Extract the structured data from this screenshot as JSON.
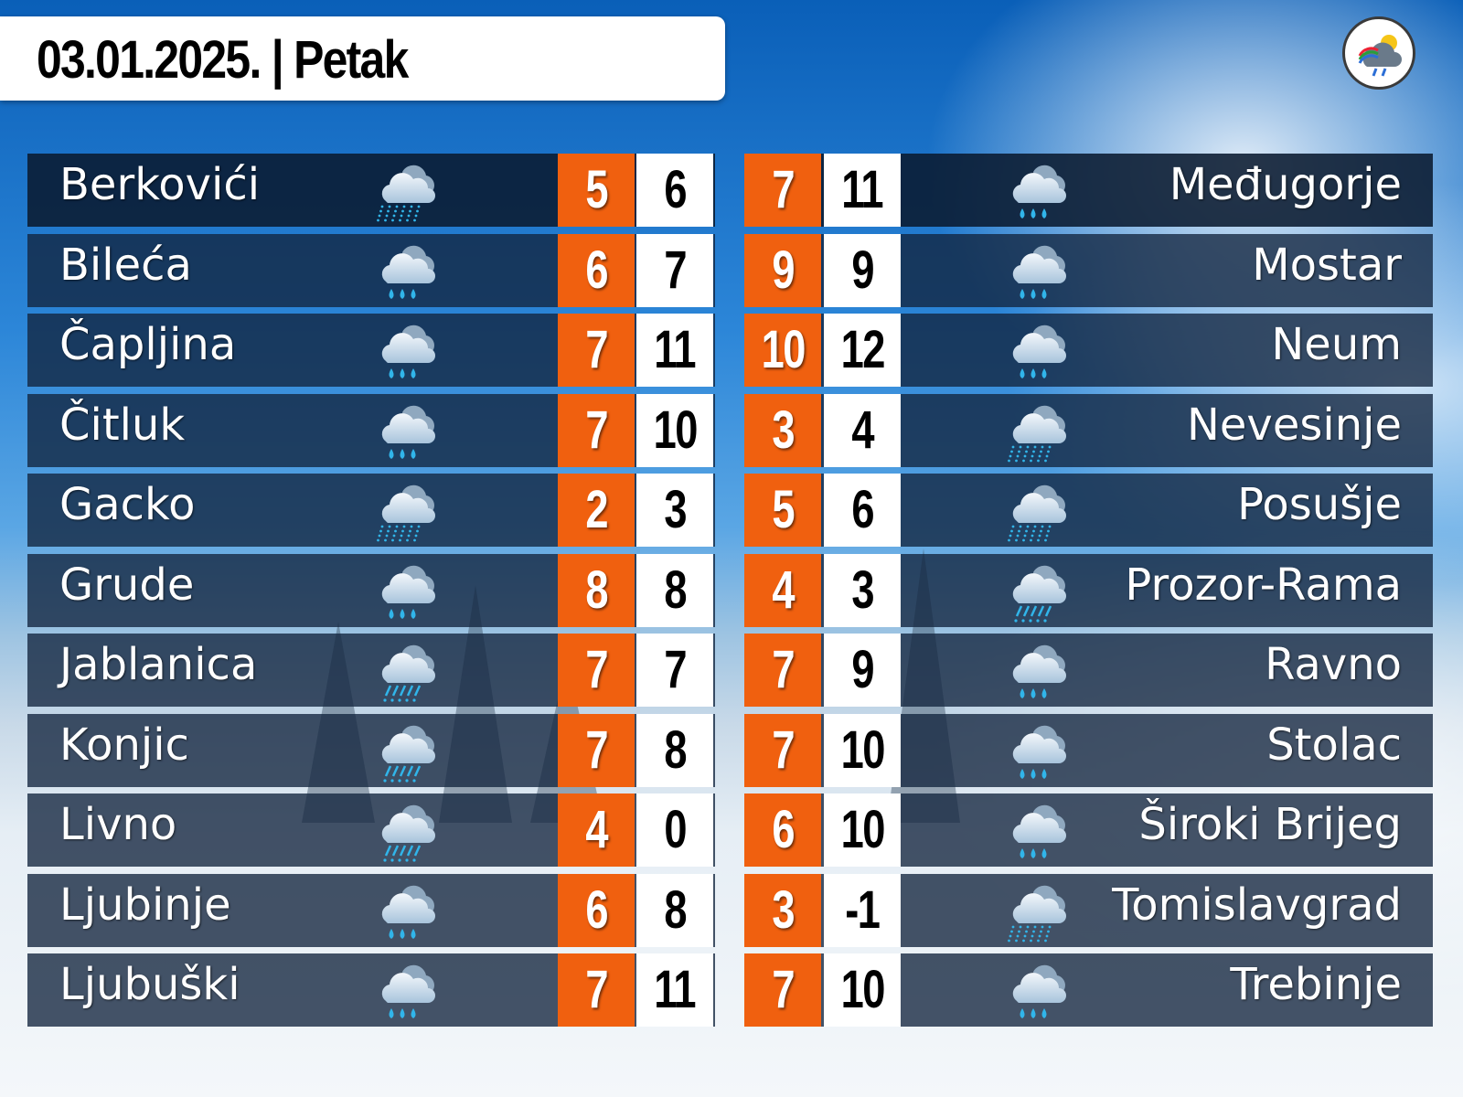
{
  "header": {
    "title": "03.01.2025. | Petak"
  },
  "logo": {
    "icon": "weather-logo-icon"
  },
  "colors": {
    "min_cell": "#f0600f",
    "max_cell": "#ffffff",
    "row_bg": "#12243e"
  },
  "left_cities": [
    {
      "name": "Berkovići",
      "icon": "snow-cloud-icon",
      "min": "5",
      "max": "6"
    },
    {
      "name": "Bileća",
      "icon": "rain-cloud-icon",
      "min": "6",
      "max": "7"
    },
    {
      "name": "Čapljina",
      "icon": "rain-cloud-icon",
      "min": "7",
      "max": "11"
    },
    {
      "name": "Čitluk",
      "icon": "rain-cloud-icon",
      "min": "7",
      "max": "10"
    },
    {
      "name": "Gacko",
      "icon": "snow-cloud-icon",
      "min": "2",
      "max": "3"
    },
    {
      "name": "Grude",
      "icon": "rain-cloud-icon",
      "min": "8",
      "max": "8"
    },
    {
      "name": "Jablanica",
      "icon": "sleet-cloud-icon",
      "min": "7",
      "max": "7"
    },
    {
      "name": "Konjic",
      "icon": "sleet-cloud-icon",
      "min": "7",
      "max": "8"
    },
    {
      "name": "Livno",
      "icon": "sleet-cloud-icon",
      "min": "4",
      "max": "0"
    },
    {
      "name": "Ljubinje",
      "icon": "rain-cloud-icon",
      "min": "6",
      "max": "8"
    },
    {
      "name": "Ljubuški",
      "icon": "rain-cloud-icon",
      "min": "7",
      "max": "11"
    }
  ],
  "right_cities": [
    {
      "name": "Međugorje",
      "icon": "rain-cloud-icon",
      "min": "7",
      "max": "11"
    },
    {
      "name": "Mostar",
      "icon": "rain-cloud-icon",
      "min": "9",
      "max": "9"
    },
    {
      "name": "Neum",
      "icon": "rain-cloud-icon",
      "min": "10",
      "max": "12"
    },
    {
      "name": "Nevesinje",
      "icon": "snow-cloud-icon",
      "min": "3",
      "max": "4"
    },
    {
      "name": "Posušje",
      "icon": "snow-cloud-icon",
      "min": "5",
      "max": "6"
    },
    {
      "name": "Prozor-Rama",
      "icon": "sleet-cloud-icon",
      "min": "4",
      "max": "3"
    },
    {
      "name": "Ravno",
      "icon": "rain-cloud-icon",
      "min": "7",
      "max": "9"
    },
    {
      "name": "Stolac",
      "icon": "rain-cloud-icon",
      "min": "7",
      "max": "10"
    },
    {
      "name": "Široki Brijeg",
      "icon": "rain-cloud-icon",
      "min": "6",
      "max": "10"
    },
    {
      "name": "Tomislavgrad",
      "icon": "snow-cloud-icon",
      "min": "3",
      "max": "-1"
    },
    {
      "name": "Trebinje",
      "icon": "rain-cloud-icon",
      "min": "7",
      "max": "10"
    }
  ]
}
